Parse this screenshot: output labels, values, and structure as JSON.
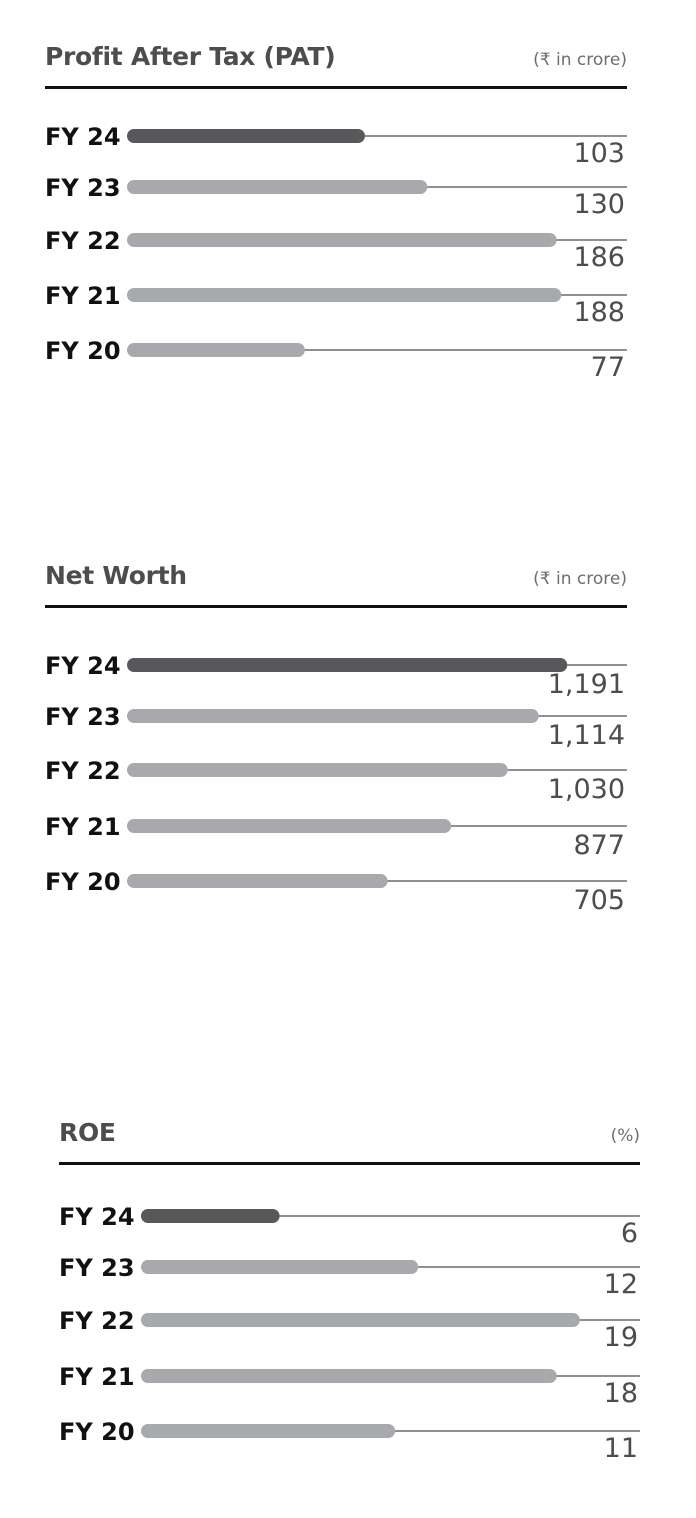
{
  "chart_data": [
    {
      "type": "bar",
      "title": "Profit After Tax (PAT)",
      "unit": "(₹ in crore)",
      "categories": [
        "FY 24",
        "FY 23",
        "FY 22",
        "FY 21",
        "FY 20"
      ],
      "values": [
        103,
        130,
        186,
        188,
        77
      ],
      "value_labels": [
        "103",
        "130",
        "186",
        "188",
        "77"
      ],
      "highlight_index": 0,
      "xlim": [
        0,
        200
      ],
      "colors": {
        "highlight": "#58585a",
        "default": "#a7a9ac",
        "track": "#231f20"
      }
    },
    {
      "type": "bar",
      "title": "Net Worth",
      "unit": "(₹ in crore)",
      "categories": [
        "FY 24",
        "FY 23",
        "FY 22",
        "FY 21",
        "FY 20"
      ],
      "values": [
        1191,
        1114,
        1030,
        877,
        705
      ],
      "value_labels": [
        "1,191",
        "1,114",
        "1,030",
        "877",
        "705"
      ],
      "highlight_index": 0,
      "xlim": [
        0,
        1250
      ],
      "colors": {
        "highlight": "#58585a",
        "default": "#a7a9ac",
        "track": "#231f20"
      }
    },
    {
      "type": "bar",
      "title": "ROE",
      "unit": "(%)",
      "categories": [
        "FY 24",
        "FY 23",
        "FY 22",
        "FY 21",
        "FY 20"
      ],
      "values": [
        6,
        12,
        19,
        18,
        11
      ],
      "value_labels": [
        "6",
        "12",
        "19",
        "18",
        "11"
      ],
      "highlight_index": 0,
      "xlim": [
        0,
        20
      ],
      "colors": {
        "highlight": "#58585a",
        "default": "#a7a9ac",
        "track": "#231f20"
      }
    }
  ]
}
